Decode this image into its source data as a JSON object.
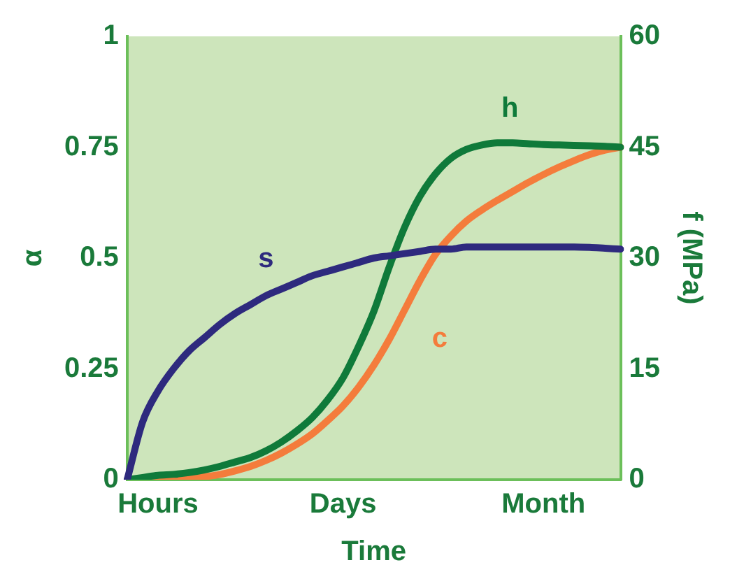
{
  "chart_data": {
    "type": "line",
    "xlabel": "Time",
    "ylabel": "α",
    "y2label": "f (MPa)",
    "categories": [
      null,
      null,
      "Hours",
      null,
      null,
      null,
      null,
      null,
      null,
      null,
      null,
      null,
      null,
      null,
      "Days",
      null,
      null,
      null,
      null,
      null,
      null,
      null,
      null,
      null,
      null,
      null,
      null,
      "Month",
      null,
      null,
      null,
      null,
      null
    ],
    "ylim": [
      0,
      1
    ],
    "yticks": [
      0,
      0.25,
      0.5,
      0.75,
      1
    ],
    "y2lim": [
      0,
      60
    ],
    "y2ticks": [
      0,
      15,
      30,
      45,
      60
    ],
    "grid": false,
    "legend": false,
    "marker": "none",
    "line_style": "solid",
    "series": [
      {
        "name": "s",
        "color": "#2e2a7e",
        "values": [
          0,
          0.13,
          0.2,
          0.25,
          0.29,
          0.32,
          0.35,
          0.375,
          0.395,
          0.415,
          0.43,
          0.445,
          0.46,
          0.47,
          0.48,
          0.49,
          0.5,
          0.505,
          0.51,
          0.515,
          0.52,
          0.52,
          0.525,
          0.525,
          0.525,
          0.525,
          0.525,
          0.525,
          0.525,
          0.525,
          0.524,
          0.522,
          0.52
        ]
      },
      {
        "name": "h",
        "color": "#0f7a3a",
        "values": [
          0,
          0.005,
          0.01,
          0.012,
          0.016,
          0.022,
          0.03,
          0.04,
          0.05,
          0.065,
          0.085,
          0.11,
          0.14,
          0.18,
          0.23,
          0.3,
          0.38,
          0.48,
          0.57,
          0.64,
          0.69,
          0.725,
          0.745,
          0.755,
          0.76,
          0.76,
          0.758,
          0.756,
          0.755,
          0.754,
          0.753,
          0.752,
          0.75
        ]
      },
      {
        "name": "c",
        "color": "#f47c3c",
        "axis": "y2",
        "values": [
          0,
          0,
          0,
          0.1,
          0.2,
          0.4,
          0.7,
          1.2,
          1.8,
          2.6,
          3.6,
          4.8,
          6.2,
          8,
          10,
          12.5,
          15.5,
          19,
          23,
          27,
          30.5,
          33,
          35,
          36.5,
          37.8,
          39,
          40.2,
          41.3,
          42.3,
          43.2,
          44,
          44.6,
          45
        ]
      }
    ]
  }
}
